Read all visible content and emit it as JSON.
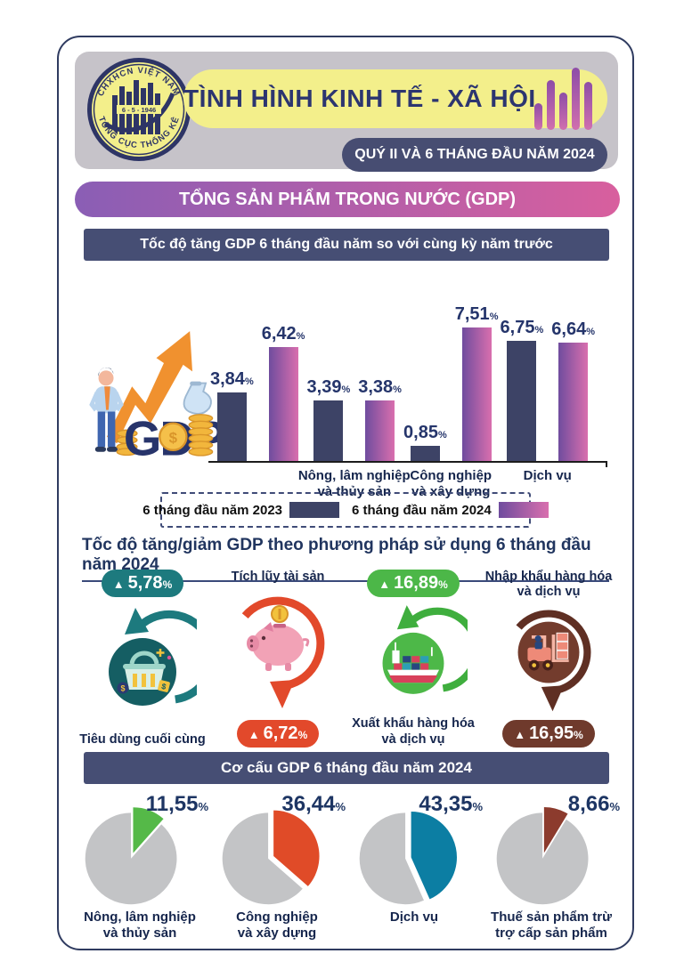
{
  "glyphs": {
    "up": "▲",
    "percent": "%"
  },
  "colors": {
    "card_border": "#2f3b60",
    "header_bg": "#c6c3c9",
    "accent_yellow": "#f3ef8b",
    "navy": "#2c3570",
    "banner_gradient": [
      "#8a5eb5",
      "#d85f9e"
    ],
    "section_bar": "#464e74",
    "bar_2023": "#3d4366",
    "bar_2024_gradient": [
      "#6f4c9e",
      "#d96fae"
    ],
    "pie_rest": "#c3c4c6"
  },
  "header": {
    "logo": {
      "top": "CHXHCN VIỆT NAM",
      "center": "6 - 5 - 1946",
      "bottom": "TỔNG CỤC THỐNG KÊ"
    },
    "title": "TÌNH HÌNH KINH TẾ - XÃ HỘI",
    "subtitle": "QUÝ II VÀ 6 THÁNG ĐẦU NĂM 2024"
  },
  "gdp_banner": "TỔNG SẢN PHẨM TRONG NƯỚC (GDP)",
  "growth_chart": {
    "title": "Tốc độ tăng GDP 6 tháng đầu năm so với cùng kỳ năm trước",
    "gdp_text": "GDP",
    "legend": [
      {
        "label": "6 tháng đầu năm 2023",
        "color": "#3d4366"
      },
      {
        "label": "6 tháng đầu năm 2024",
        "gradient": [
          "#6f4c9e",
          "#d96fae"
        ]
      }
    ],
    "groups": [
      {
        "label": "",
        "y2023": {
          "num": 3.84,
          "text": "3,84"
        },
        "y2024": {
          "num": 6.42,
          "text": "6,42"
        }
      },
      {
        "label": "Nông, lâm nghiệp\nvà thủy sản",
        "y2023": {
          "num": 3.39,
          "text": "3,39"
        },
        "y2024": {
          "num": 3.38,
          "text": "3,38"
        }
      },
      {
        "label": "Công nghiệp\nvà xây dựng",
        "y2023": {
          "num": 0.85,
          "text": "0,85"
        },
        "y2024": {
          "num": 7.51,
          "text": "7,51"
        }
      },
      {
        "label": "Dịch vụ",
        "y2023": {
          "num": 6.75,
          "text": "6,75"
        },
        "y2024": {
          "num": 6.64,
          "text": "6,64"
        }
      }
    ]
  },
  "usage_section": {
    "title": "Tốc độ tăng/giảm GDP theo phương pháp sử dụng 6 tháng đầu năm 2024",
    "items": [
      {
        "label": "Tiêu dùng cuối cùng",
        "value": "5,78",
        "direction": "up",
        "color": "#1d7a7e",
        "icon": "shopping-basket"
      },
      {
        "label": "Tích lũy tài sản",
        "value": "6,72",
        "direction": "down",
        "color": "#e2492b",
        "icon": "piggy-bank"
      },
      {
        "label": "Xuất khẩu hàng hóa\nvà dịch vụ",
        "value": "16,89",
        "direction": "up",
        "color": "#4cb748",
        "icon": "cargo-ship"
      },
      {
        "label": "Nhập khẩu hàng hóa\nvà dịch vụ",
        "value": "16,95",
        "direction": "down",
        "color": "#6f3a2c",
        "icon": "forklift"
      }
    ]
  },
  "structure_section": {
    "title": "Cơ cấu GDP 6 tháng đầu năm 2024",
    "pies": [
      {
        "label": "Nông, lâm nghiệp\nvà thủy sản",
        "display": "11,55",
        "value": 11.55,
        "color": "#55b948"
      },
      {
        "label": "Công nghiệp\nvà xây dựng",
        "display": "36,44",
        "value": 36.44,
        "color": "#e04b28"
      },
      {
        "label": "Dịch vụ",
        "display": "43,35",
        "value": 43.35,
        "color": "#0c7ea3"
      },
      {
        "label": "Thuế sản phẩm trừ\ntrợ cấp sản phẩm",
        "display": "8,66",
        "value": 8.66,
        "color": "#8c3b2d"
      }
    ]
  },
  "chart_data": [
    {
      "type": "bar",
      "title": "Tốc độ tăng GDP 6 tháng đầu năm so với cùng kỳ năm trước",
      "categories": [
        "GDP",
        "Nông, lâm nghiệp và thủy sản",
        "Công nghiệp và xây dựng",
        "Dịch vụ"
      ],
      "series": [
        {
          "name": "6 tháng đầu năm 2023",
          "values": [
            3.84,
            3.39,
            0.85,
            6.75
          ]
        },
        {
          "name": "6 tháng đầu năm 2024",
          "values": [
            6.42,
            3.38,
            7.51,
            6.64
          ]
        }
      ],
      "xlabel": "",
      "ylabel": "%",
      "ylim": [
        0,
        8
      ],
      "grid": false,
      "legend_position": "bottom"
    },
    {
      "type": "table",
      "title": "Tốc độ tăng/giảm GDP theo phương pháp sử dụng 6 tháng đầu năm 2024",
      "rows": [
        [
          "Tiêu dùng cuối cùng",
          "▲ 5,78%"
        ],
        [
          "Tích lũy tài sản",
          "▲ 6,72%"
        ],
        [
          "Xuất khẩu hàng hóa và dịch vụ",
          "▲ 16,89%"
        ],
        [
          "Nhập khẩu hàng hóa và dịch vụ",
          "▲ 16,95%"
        ]
      ]
    },
    {
      "type": "pie",
      "title": "Cơ cấu GDP 6 tháng đầu năm 2024",
      "categories": [
        "Nông, lâm nghiệp và thủy sản",
        "Công nghiệp và xây dựng",
        "Dịch vụ",
        "Thuế sản phẩm trừ trợ cấp sản phẩm"
      ],
      "values": [
        11.55,
        36.44,
        43.35,
        8.66
      ]
    }
  ]
}
